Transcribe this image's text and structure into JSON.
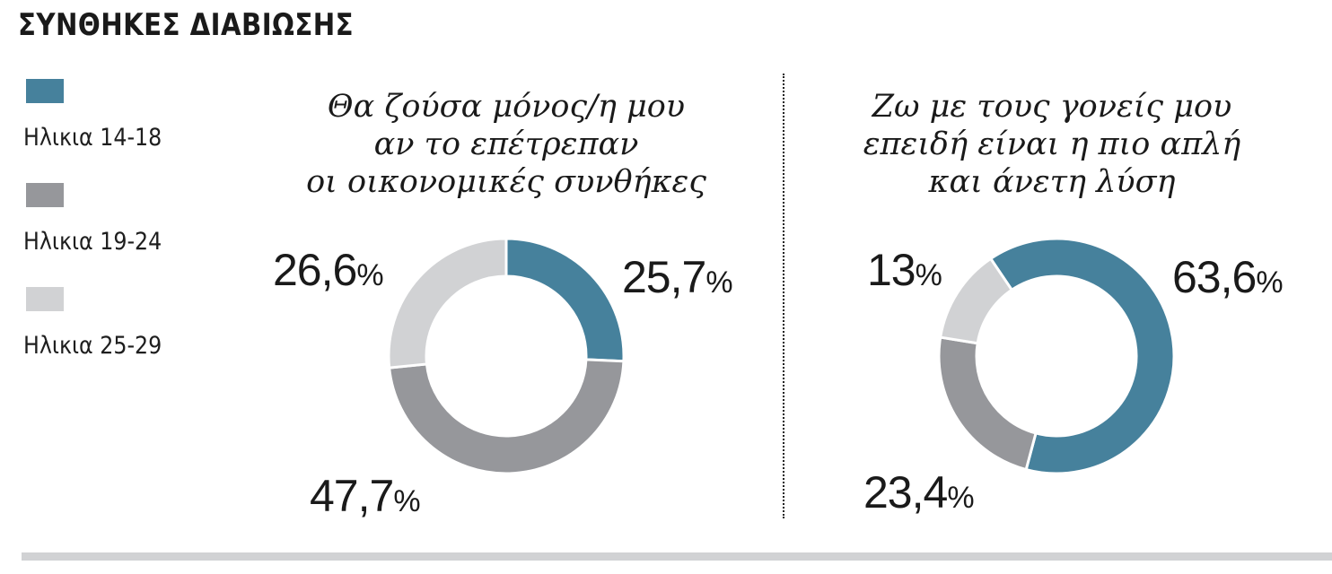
{
  "title": "ΣΥΝΘΗΚΕΣ ΔΙΑΒΙΩΣΗΣ",
  "colors": {
    "age_14_18": "#46819c",
    "age_19_24": "#96979b",
    "age_25_29": "#d1d2d4",
    "text": "#1a1a1a",
    "bottom_bar": "#d1d2d4"
  },
  "legend": [
    {
      "label": "Ηλικια 14-18",
      "color": "#46819c"
    },
    {
      "label": "Ηλικια 19-24",
      "color": "#96979b"
    },
    {
      "label": "Ηλικια 25-29",
      "color": "#d1d2d4"
    }
  ],
  "charts": [
    {
      "subtitle_lines": [
        "Θα ζούσα μόνος/η μου",
        "αν το επέτρεπαν",
        "οι οικονομικές συνθήκες"
      ],
      "labels": [
        {
          "value": "25,7",
          "sign": "%"
        },
        {
          "value": "47,7",
          "sign": "%"
        },
        {
          "value": "26,6",
          "sign": "%"
        }
      ]
    },
    {
      "subtitle_lines": [
        "Ζω με τους γονείς μου",
        "επειδή είναι η πιο απλή",
        "και άνετη λύση"
      ],
      "labels": [
        {
          "value": "63,6",
          "sign": "%"
        },
        {
          "value": "23,4",
          "sign": "%"
        },
        {
          "value": "13",
          "sign": "%"
        }
      ]
    }
  ],
  "chart_data": [
    {
      "type": "pie",
      "subtype": "donut",
      "title": "Θα ζούσα μόνος/η μου αν το επέτρεπαν οι οικονομικές συνθήκες",
      "categories": [
        "Ηλικια 14-18",
        "Ηλικια 19-24",
        "Ηλικια 25-29"
      ],
      "values": [
        25.7,
        47.7,
        26.6
      ],
      "value_labels": [
        "25,7%",
        "47,7%",
        "26,6%"
      ],
      "colors": [
        "#46819c",
        "#96979b",
        "#d1d2d4"
      ],
      "start_angle_deg": 0,
      "direction": "clockwise",
      "legend_position": "left"
    },
    {
      "type": "pie",
      "subtype": "donut",
      "title": "Ζω με τους γονείς μου επειδή είναι η πιο απλή και άνετη λύση",
      "categories": [
        "Ηλικια 14-18",
        "Ηλικια 19-24",
        "Ηλικια 25-29"
      ],
      "values": [
        63.6,
        23.4,
        13
      ],
      "value_labels": [
        "63,6%",
        "23,4%",
        "13%"
      ],
      "colors": [
        "#46819c",
        "#96979b",
        "#d1d2d4"
      ],
      "start_angle_deg": 326,
      "direction": "clockwise",
      "legend_position": "left"
    }
  ]
}
